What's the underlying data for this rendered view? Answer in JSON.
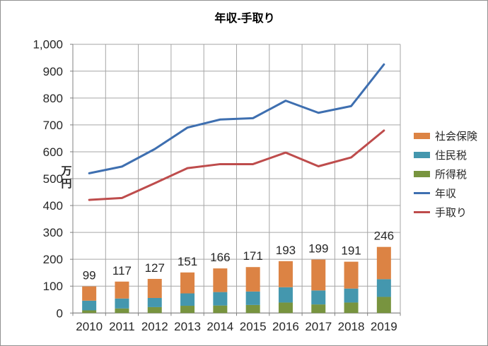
{
  "title": "年収-手取り",
  "y_axis_label": "万円",
  "colors": {
    "social_insurance": "#DC8344",
    "resident_tax": "#4497AE",
    "income_tax": "#78943F",
    "annual_income_line": "#3E6FB0",
    "take_home_line": "#BE4C4C",
    "gridline": "#A6A6A6",
    "axis": "#808080",
    "text": "#262626",
    "title_text": "#000000"
  },
  "chart_data": {
    "type": "combo_stacked_bar_line",
    "categories": [
      "2010",
      "2011",
      "2012",
      "2013",
      "2014",
      "2015",
      "2016",
      "2017",
      "2018",
      "2019"
    ],
    "bar_series": [
      {
        "name": "所得税",
        "color": "#78943F",
        "values": [
          10,
          17,
          22,
          27,
          28,
          30,
          39,
          32,
          39,
          60
        ]
      },
      {
        "name": "住民税",
        "color": "#4497AE",
        "values": [
          36,
          37,
          34,
          46,
          50,
          50,
          57,
          52,
          52,
          66
        ]
      },
      {
        "name": "社会保険",
        "color": "#DC8344",
        "values": [
          53,
          63,
          71,
          78,
          88,
          91,
          97,
          115,
          100,
          120
        ]
      }
    ],
    "bar_total_labels": [
      "99",
      "117",
      "127",
      "151",
      "166",
      "171",
      "193",
      "199",
      "191",
      "246"
    ],
    "line_series": [
      {
        "name": "年収",
        "color": "#3E6FB0",
        "values": [
          520,
          545,
          610,
          690,
          720,
          725,
          790,
          745,
          770,
          925
        ]
      },
      {
        "name": "手取り",
        "color": "#BE4C4C",
        "values": [
          421,
          428,
          483,
          539,
          554,
          554,
          597,
          546,
          579,
          679
        ]
      }
    ],
    "title": "年収-手取り",
    "xlabel": "",
    "ylabel": "万円",
    "ylim": [
      0,
      1000
    ],
    "ytick_step": 100,
    "ytick_labels": [
      "0",
      "100",
      "200",
      "300",
      "400",
      "500",
      "600",
      "700",
      "800",
      "900",
      "1,000"
    ],
    "grid": "both",
    "legend_position": "right"
  },
  "legend": {
    "items": [
      {
        "label": "社会保険",
        "swatch": "rect",
        "color": "#DC8344"
      },
      {
        "label": "住民税",
        "swatch": "rect",
        "color": "#4497AE"
      },
      {
        "label": "所得税",
        "swatch": "rect",
        "color": "#78943F"
      },
      {
        "label": "年収",
        "swatch": "line",
        "color": "#3E6FB0"
      },
      {
        "label": "手取り",
        "swatch": "line",
        "color": "#BE4C4C"
      }
    ]
  }
}
